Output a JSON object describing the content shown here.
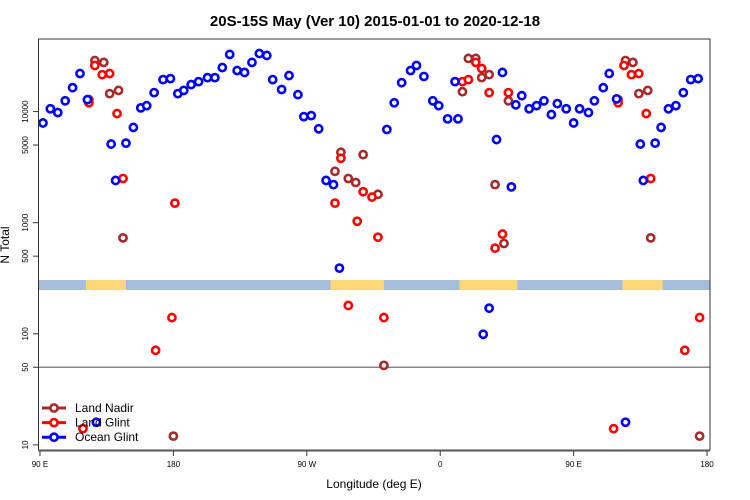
{
  "chart_data": {
    "type": "scatter",
    "title": "20S-15S May (Ver 10)   2015-01-01 to 2020-12-18",
    "xlabel": "Longitude (deg E)",
    "ylabel": "N Total",
    "y_scale": "log",
    "xlim": [
      89,
      542
    ],
    "ylim": [
      9,
      45000
    ],
    "x_ticks": [
      {
        "value": 90,
        "label": "90 E"
      },
      {
        "value": 180,
        "label": "180"
      },
      {
        "value": 270,
        "label": "90 W"
      },
      {
        "value": 360,
        "label": "0"
      },
      {
        "value": 450,
        "label": "90 E"
      },
      {
        "value": 540,
        "label": "180"
      }
    ],
    "y_ticks": [
      {
        "value": 10,
        "label": "10"
      },
      {
        "value": 50,
        "label": "50"
      },
      {
        "value": 100,
        "label": "100"
      },
      {
        "value": 500,
        "label": "500"
      },
      {
        "value": 1000,
        "label": "1000"
      },
      {
        "value": 5000,
        "label": "5000"
      },
      {
        "value": 10000,
        "label": "10000"
      }
    ],
    "reference_line": 50,
    "grid": false,
    "legend_position": "bottom-left",
    "land_mask_strip": {
      "ocean_color": "#a6bddb",
      "land_color": "#fdd87a",
      "land_ranges": [
        [
          121,
          148
        ],
        [
          286,
          322
        ],
        [
          373,
          412
        ],
        [
          483,
          510
        ]
      ]
    },
    "series": [
      {
        "name": "Land Nadir",
        "color": "#a52a2a",
        "points": [
          [
            123,
            12800
          ],
          [
            127,
            28800
          ],
          [
            133,
            27700
          ],
          [
            137,
            14500
          ],
          [
            143,
            15500
          ],
          [
            146,
            730
          ],
          [
            180,
            12
          ],
          [
            289,
            2900
          ],
          [
            293,
            4300
          ],
          [
            298,
            2500
          ],
          [
            303,
            2300
          ],
          [
            308,
            4100
          ],
          [
            318,
            1800
          ],
          [
            322,
            52
          ],
          [
            375,
            15100
          ],
          [
            379,
            30100
          ],
          [
            384,
            30100
          ],
          [
            388,
            20200
          ],
          [
            393,
            21500
          ],
          [
            397,
            2200
          ],
          [
            403,
            650
          ],
          [
            406,
            12500
          ],
          [
            480,
            12800
          ],
          [
            485,
            28800
          ],
          [
            490,
            27700
          ],
          [
            494,
            14500
          ],
          [
            500,
            15500
          ],
          [
            502,
            730
          ],
          [
            535,
            12
          ]
        ]
      },
      {
        "name": "Land Glint",
        "color": "#ff0000",
        "points": [
          [
            119,
            14
          ],
          [
            123,
            12000
          ],
          [
            127,
            26000
          ],
          [
            132,
            21500
          ],
          [
            137,
            22000
          ],
          [
            142,
            9600
          ],
          [
            146,
            2500
          ],
          [
            168,
            71
          ],
          [
            179,
            140
          ],
          [
            181,
            1500
          ],
          [
            289,
            1500
          ],
          [
            293,
            3800
          ],
          [
            298,
            180
          ],
          [
            304,
            1030
          ],
          [
            308,
            1900
          ],
          [
            314,
            1700
          ],
          [
            318,
            740
          ],
          [
            322,
            140
          ],
          [
            375,
            18600
          ],
          [
            379,
            19400
          ],
          [
            384,
            27700
          ],
          [
            388,
            24400
          ],
          [
            393,
            14800
          ],
          [
            397,
            590
          ],
          [
            402,
            790
          ],
          [
            406,
            14800
          ],
          [
            477,
            14
          ],
          [
            480,
            12000
          ],
          [
            484,
            26000
          ],
          [
            489,
            21500
          ],
          [
            494,
            22000
          ],
          [
            499,
            9600
          ],
          [
            502,
            2500
          ],
          [
            525,
            71
          ],
          [
            535,
            140
          ]
        ]
      },
      {
        "name": "Ocean Glint",
        "color": "#0000ff",
        "points": [
          [
            92,
            7900
          ],
          [
            97,
            10600
          ],
          [
            102,
            9800
          ],
          [
            107,
            12500
          ],
          [
            112,
            16400
          ],
          [
            117,
            22000
          ],
          [
            122,
            12800
          ],
          [
            128,
            16
          ],
          [
            138,
            5100
          ],
          [
            141,
            2400
          ],
          [
            148,
            5200
          ],
          [
            153,
            7200
          ],
          [
            158,
            10800
          ],
          [
            162,
            11300
          ],
          [
            167,
            14800
          ],
          [
            173,
            19400
          ],
          [
            178,
            19800
          ],
          [
            183,
            14500
          ],
          [
            187,
            15500
          ],
          [
            192,
            17500
          ],
          [
            197,
            18600
          ],
          [
            203,
            20200
          ],
          [
            208,
            20200
          ],
          [
            213,
            24900
          ],
          [
            218,
            32700
          ],
          [
            223,
            23400
          ],
          [
            228,
            22500
          ],
          [
            233,
            27700
          ],
          [
            238,
            33300
          ],
          [
            243,
            32000
          ],
          [
            247,
            19400
          ],
          [
            253,
            15800
          ],
          [
            258,
            21100
          ],
          [
            264,
            14200
          ],
          [
            268,
            9000
          ],
          [
            273,
            9200
          ],
          [
            278,
            7000
          ],
          [
            283,
            2400
          ],
          [
            288,
            2200
          ],
          [
            292,
            390
          ],
          [
            324,
            6900
          ],
          [
            329,
            12000
          ],
          [
            334,
            18200
          ],
          [
            340,
            23400
          ],
          [
            344,
            26000
          ],
          [
            349,
            20700
          ],
          [
            355,
            12500
          ],
          [
            359,
            11300
          ],
          [
            365,
            8600
          ],
          [
            370,
            18600
          ],
          [
            372,
            8600
          ],
          [
            389,
            99
          ],
          [
            393,
            170
          ],
          [
            398,
            5600
          ],
          [
            402,
            22500
          ],
          [
            408,
            2100
          ],
          [
            411,
            11500
          ],
          [
            415,
            13900
          ],
          [
            420,
            10600
          ],
          [
            425,
            11300
          ],
          [
            430,
            12500
          ],
          [
            435,
            9400
          ],
          [
            439,
            11800
          ],
          [
            445,
            10600
          ],
          [
            450,
            7900
          ],
          [
            454,
            10600
          ],
          [
            460,
            9800
          ],
          [
            464,
            12500
          ],
          [
            470,
            16400
          ],
          [
            474,
            22000
          ],
          [
            479,
            13000
          ],
          [
            485,
            16
          ],
          [
            495,
            5100
          ],
          [
            497,
            2400
          ],
          [
            505,
            5200
          ],
          [
            509,
            7200
          ],
          [
            514,
            10600
          ],
          [
            519,
            11300
          ],
          [
            524,
            14800
          ],
          [
            529,
            19400
          ],
          [
            534,
            19800
          ]
        ]
      }
    ]
  }
}
